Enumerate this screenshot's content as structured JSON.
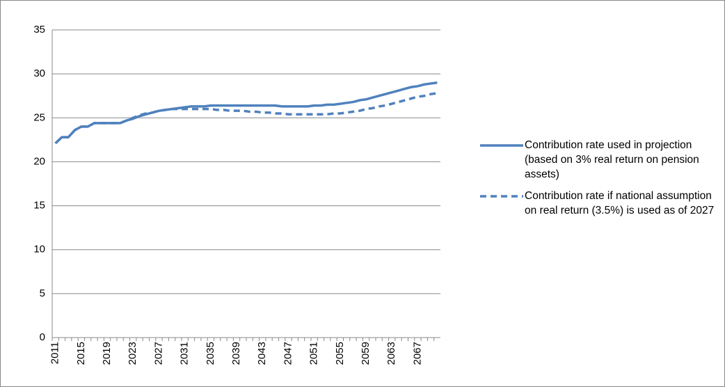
{
  "chart_data": {
    "type": "line",
    "categories": [
      "2011",
      null,
      null,
      null,
      "2015",
      null,
      null,
      null,
      "2019",
      null,
      null,
      null,
      "2023",
      null,
      null,
      null,
      "2027",
      null,
      null,
      null,
      "2031",
      null,
      null,
      null,
      "2035",
      null,
      null,
      null,
      "2039",
      null,
      null,
      null,
      "2043",
      null,
      null,
      null,
      "2047",
      null,
      null,
      null,
      "2051",
      null,
      null,
      null,
      "2055",
      null,
      null,
      null,
      "2059",
      null,
      null,
      null,
      "2063",
      null,
      null,
      null,
      "2067",
      null,
      null,
      null
    ],
    "series": [
      {
        "name": "Contribution rate used in projection (based on 3% real return on pension assets)",
        "color": "#4f81bd",
        "dash": false,
        "values": [
          22.1,
          22.8,
          22.8,
          23.6,
          24.0,
          24.0,
          24.4,
          24.4,
          24.4,
          24.4,
          24.4,
          24.7,
          24.9,
          25.2,
          25.4,
          25.6,
          25.8,
          25.9,
          26.0,
          26.1,
          26.2,
          26.3,
          26.3,
          26.3,
          26.4,
          26.4,
          26.4,
          26.4,
          26.4,
          26.4,
          26.4,
          26.4,
          26.4,
          26.4,
          26.4,
          26.3,
          26.3,
          26.3,
          26.3,
          26.3,
          26.4,
          26.4,
          26.5,
          26.5,
          26.6,
          26.7,
          26.8,
          27.0,
          27.1,
          27.3,
          27.5,
          27.7,
          27.9,
          28.1,
          28.3,
          28.5,
          28.6,
          28.8,
          28.9,
          29.0
        ]
      },
      {
        "name": "Contribution rate if national assumption on real return (3.5%) is used as of 2027",
        "color": "#4f81bd",
        "dash": true,
        "values": [
          22.1,
          22.8,
          22.8,
          23.6,
          24.0,
          24.0,
          24.4,
          24.4,
          24.4,
          24.4,
          24.4,
          24.7,
          25.0,
          25.3,
          25.5,
          25.6,
          25.8,
          25.9,
          26.0,
          26.0,
          26.0,
          26.0,
          26.0,
          26.0,
          26.0,
          25.9,
          25.9,
          25.8,
          25.8,
          25.8,
          25.7,
          25.7,
          25.6,
          25.6,
          25.5,
          25.5,
          25.4,
          25.4,
          25.4,
          25.4,
          25.4,
          25.4,
          25.4,
          25.5,
          25.5,
          25.6,
          25.7,
          25.8,
          26.0,
          26.1,
          26.3,
          26.4,
          26.6,
          26.8,
          27.0,
          27.2,
          27.4,
          27.5,
          27.7,
          27.8
        ]
      }
    ],
    "ylim": [
      0,
      35
    ],
    "yticks": [
      0,
      5,
      10,
      15,
      20,
      25,
      30,
      35
    ],
    "grid": true,
    "legend": "right"
  }
}
